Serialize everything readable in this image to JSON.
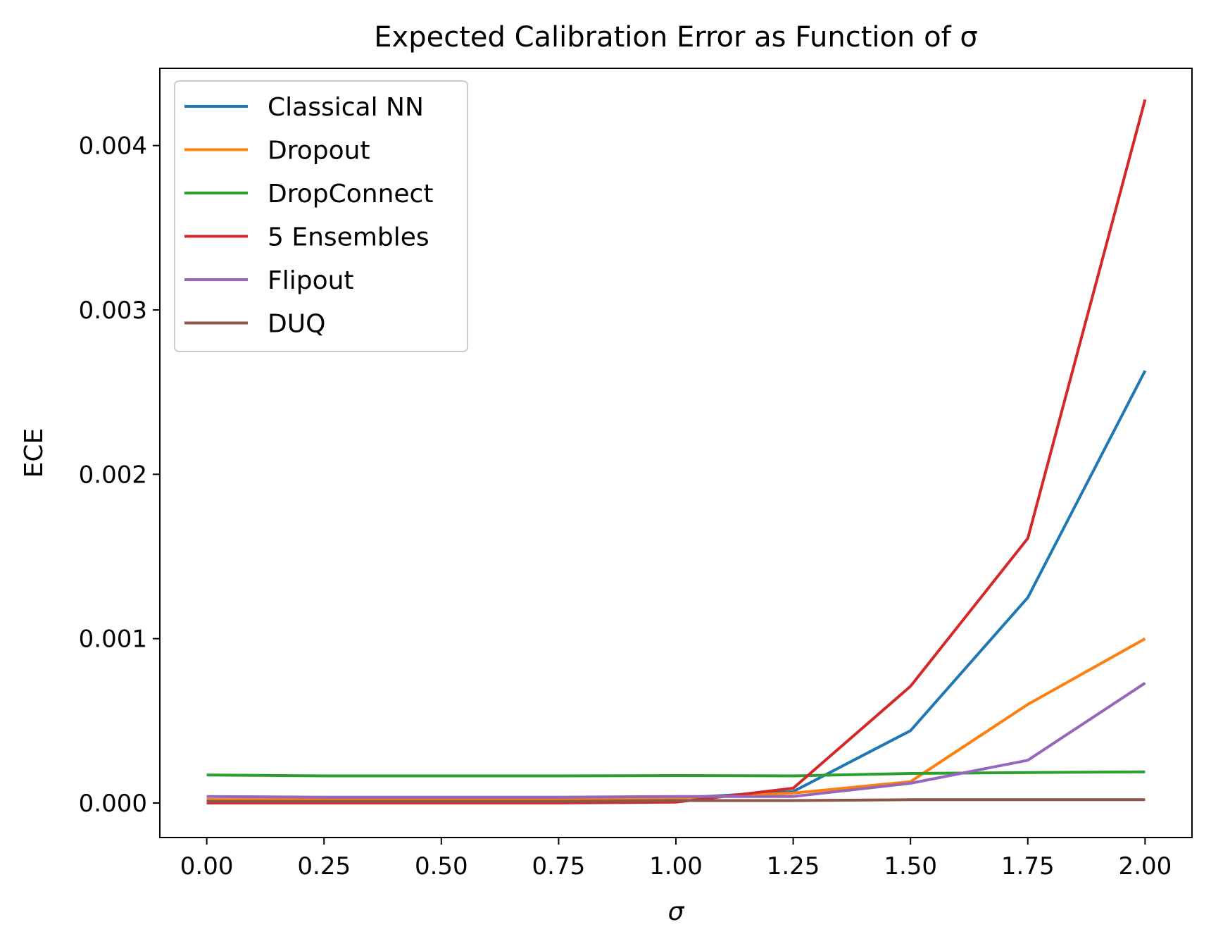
{
  "chart_data": {
    "type": "line",
    "title": "Expected Calibration Error as Function of σ",
    "xlabel": "σ",
    "ylabel": "ECE",
    "xlim": [
      -0.1,
      2.1
    ],
    "ylim": [
      -0.00021,
      0.00447
    ],
    "grid": false,
    "legend_position": "top-left",
    "x": [
      0,
      0.25,
      0.5,
      0.75,
      1.0,
      1.25,
      1.5,
      1.75,
      2.0
    ],
    "xticks": [
      0,
      0.25,
      0.5,
      0.75,
      1.0,
      1.25,
      1.5,
      1.75,
      2.0
    ],
    "xtick_labels": [
      "0.00",
      "0.25",
      "0.50",
      "0.75",
      "1.00",
      "1.25",
      "1.50",
      "1.75",
      "2.00"
    ],
    "yticks": [
      0,
      0.001,
      0.002,
      0.003,
      0.004
    ],
    "ytick_labels": [
      "0.000",
      "0.001",
      "0.002",
      "0.003",
      "0.004"
    ],
    "series": [
      {
        "name": "Classical NN",
        "color": "#1f77b4",
        "values": [
          2e-05,
          2e-05,
          2e-05,
          2e-05,
          3e-05,
          7e-05,
          0.00044,
          0.00125,
          0.00263
        ]
      },
      {
        "name": "Dropout",
        "color": "#ff7f0e",
        "values": [
          2e-05,
          2e-05,
          2e-05,
          2e-05,
          3e-05,
          6e-05,
          0.00013,
          0.0006,
          0.001
        ]
      },
      {
        "name": "DropConnect",
        "color": "#2ca02c",
        "values": [
          0.00017,
          0.000165,
          0.000165,
          0.000165,
          0.000167,
          0.000165,
          0.00018,
          0.000185,
          0.00019
        ]
      },
      {
        "name": "5 Ensembles",
        "color": "#d62728",
        "values": [
          0.0,
          0.0,
          0.0,
          0.0,
          5e-06,
          9e-05,
          0.00071,
          0.00161,
          0.00428
        ]
      },
      {
        "name": "Flipout",
        "color": "#9467bd",
        "values": [
          4e-05,
          3.5e-05,
          3.5e-05,
          3.5e-05,
          4e-05,
          4e-05,
          0.00012,
          0.00026,
          0.00073
        ]
      },
      {
        "name": "DUQ",
        "color": "#8c564b",
        "values": [
          1e-05,
          1e-05,
          1e-05,
          1e-05,
          1.5e-05,
          1.5e-05,
          2e-05,
          2e-05,
          2e-05
        ]
      }
    ]
  }
}
